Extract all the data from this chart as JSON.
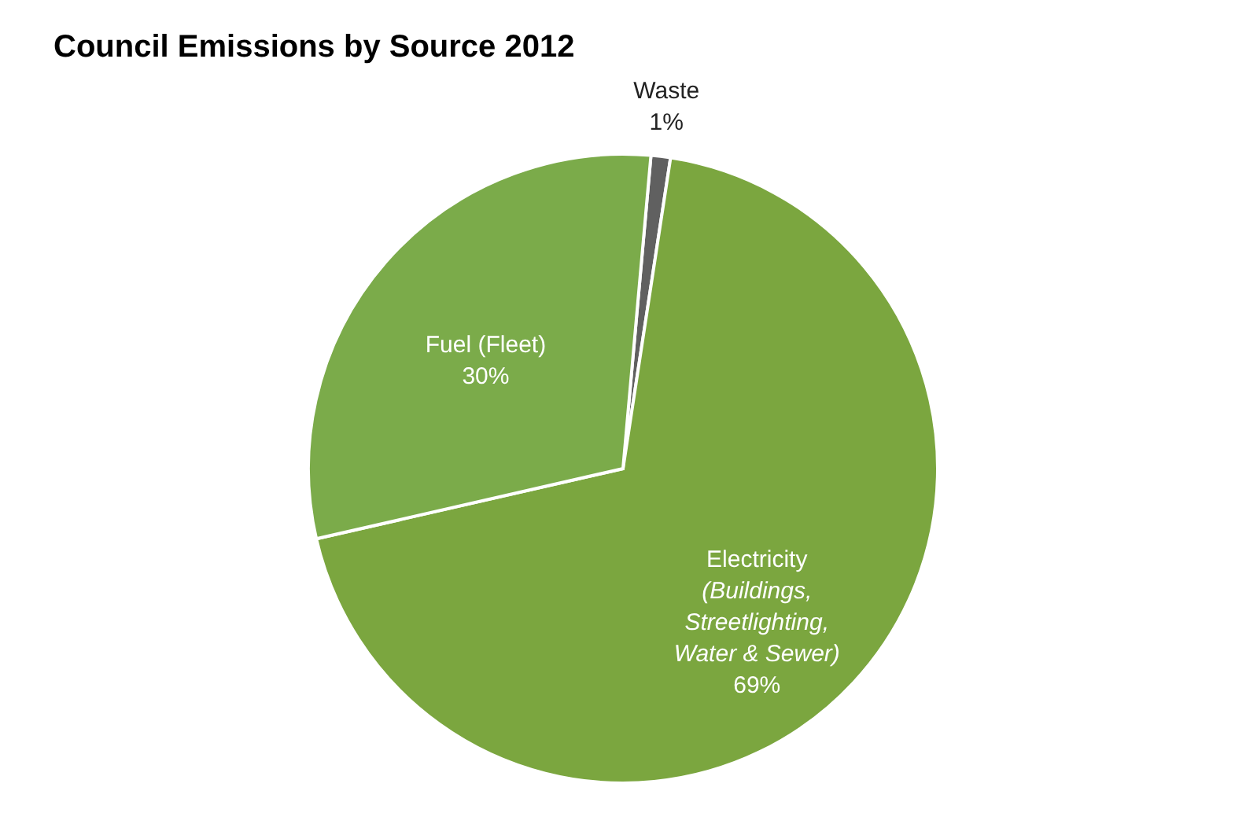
{
  "chart_data": {
    "type": "pie",
    "title": "Council Emissions by Source 2012",
    "categories": [
      "Waste",
      "Electricity (Buildings, Streetlighting, Water & Sewer)",
      "Fuel (Fleet)"
    ],
    "values": [
      1,
      69,
      30
    ],
    "colors": [
      "#606060",
      "#7ba63f",
      "#7bab4a"
    ],
    "value_labels": [
      "1%",
      "69%",
      "30%"
    ]
  }
}
